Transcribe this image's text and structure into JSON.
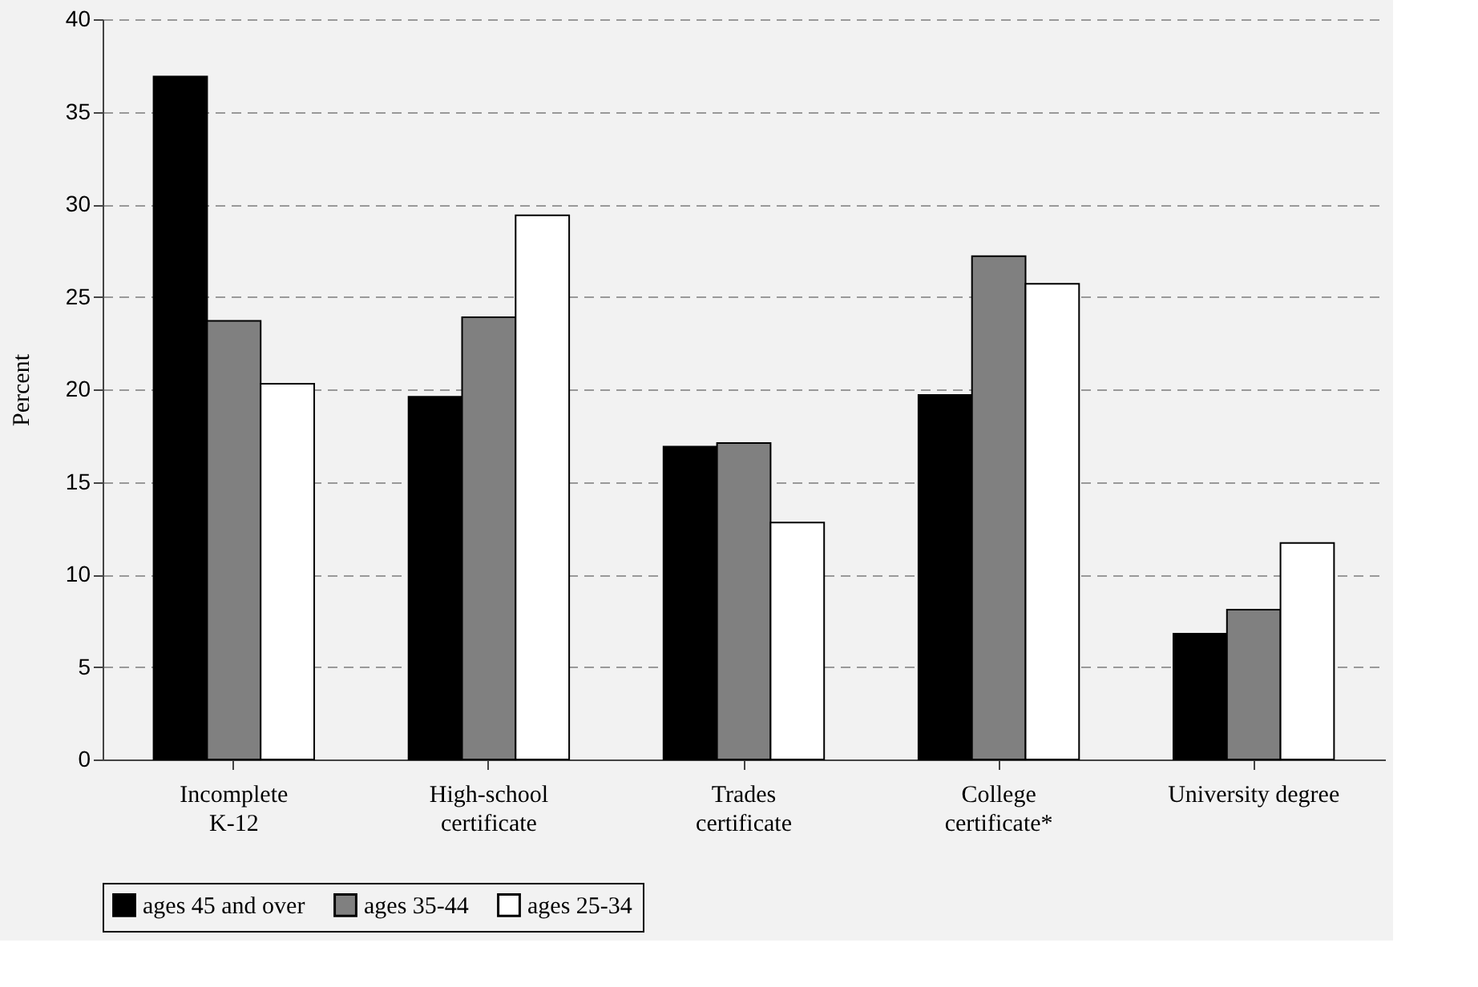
{
  "chart_data": {
    "type": "bar",
    "ylabel": "Percent",
    "categories": [
      "Incomplete\nK-12",
      "High-school\ncertificate",
      "Trades\ncertificate",
      "College\ncertificate*",
      "University degree"
    ],
    "series": [
      {
        "name": "ages 45 and over",
        "color": "#000000",
        "values": [
          36.9,
          19.6,
          16.9,
          19.7,
          6.8
        ]
      },
      {
        "name": "ages 35-44",
        "color": "#808080",
        "values": [
          23.7,
          23.9,
          17.1,
          27.2,
          8.1
        ]
      },
      {
        "name": "ages 25-34",
        "color": "#ffffff",
        "values": [
          20.3,
          29.4,
          12.8,
          25.7,
          11.7
        ]
      }
    ],
    "ylim": [
      0,
      40
    ],
    "yticks": [
      0,
      5,
      10,
      15,
      20,
      25,
      30,
      35,
      40
    ],
    "grid": "y",
    "legend": "bottom"
  }
}
